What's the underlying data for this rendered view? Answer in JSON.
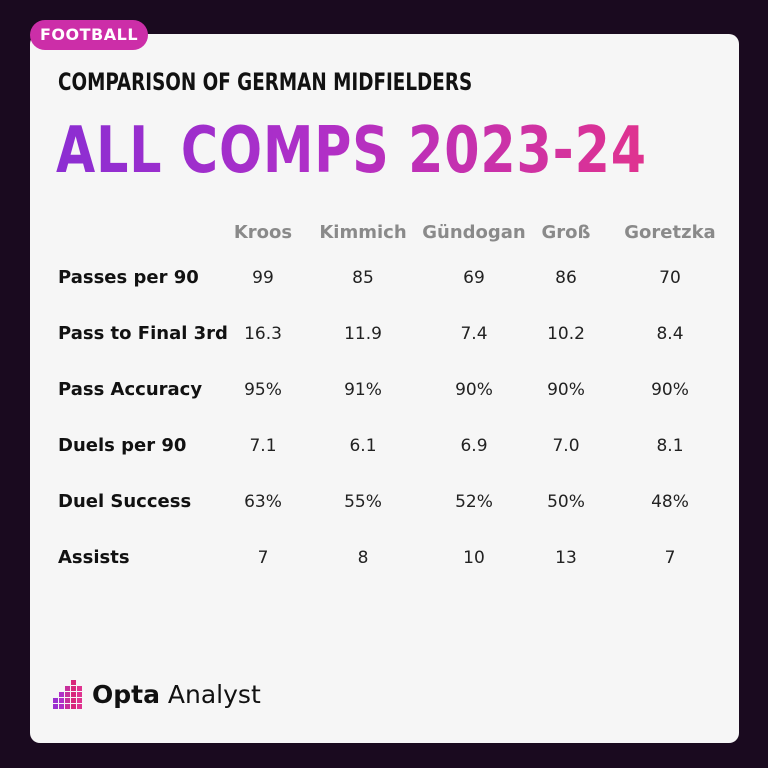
{
  "tag": "FOOTBALL",
  "subtitle": "COMPARISON OF GERMAN MIDFIELDERS",
  "title": "ALL COMPS 2023-24",
  "brand": {
    "bold": "Opta",
    "regular": " Analyst"
  },
  "chart_data": {
    "type": "table",
    "columns": [
      "Kroos",
      "Kimmich",
      "Gündogan",
      "Groß",
      "Goretzka"
    ],
    "rows": [
      {
        "label": "Passes per 90",
        "values": [
          "99",
          "85",
          "69",
          "86",
          "70"
        ]
      },
      {
        "label": "Pass to Final 3rd",
        "values": [
          "16.3",
          "11.9",
          "7.4",
          "10.2",
          "8.4"
        ]
      },
      {
        "label": "Pass Accuracy",
        "values": [
          "95%",
          "91%",
          "90%",
          "90%",
          "90%"
        ]
      },
      {
        "label": "Duels per 90",
        "values": [
          "7.1",
          "6.1",
          "6.9",
          "7.0",
          "8.1"
        ]
      },
      {
        "label": "Duel Success",
        "values": [
          "63%",
          "55%",
          "52%",
          "50%",
          "48%"
        ]
      },
      {
        "label": "Assists",
        "values": [
          "7",
          "8",
          "10",
          "13",
          "7"
        ]
      }
    ]
  },
  "colors": {
    "background": "#1a0a1f",
    "card": "#f6f6f6",
    "tag": "#cc2ea8",
    "title_gradient": [
      "#8c2ed2",
      "#e0338f"
    ],
    "header_text": "#8a8a8a"
  },
  "icons": {
    "logo": "opta-logo-icon"
  }
}
